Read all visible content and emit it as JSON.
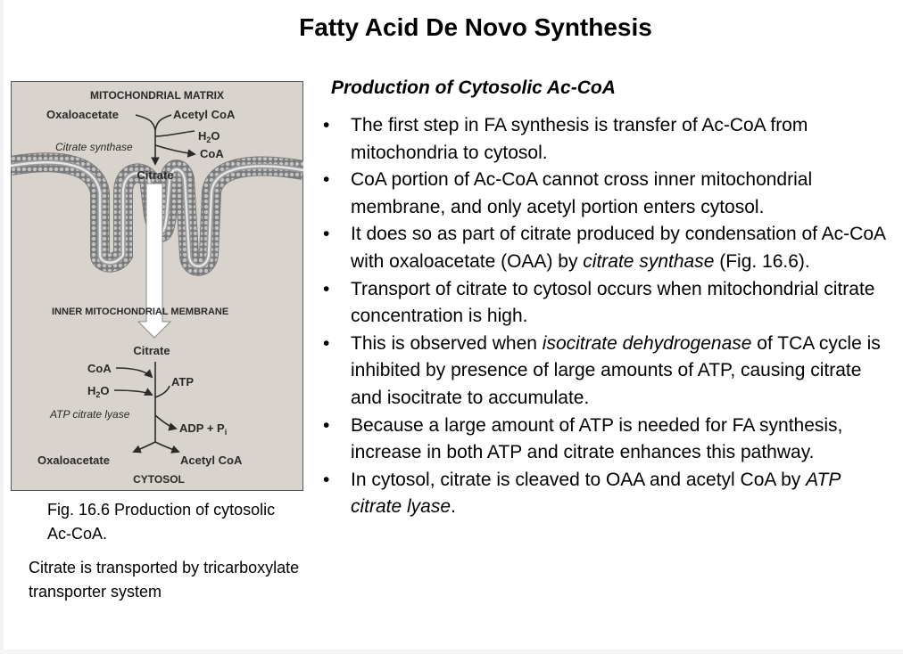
{
  "title": "Fatty Acid De Novo Synthesis",
  "subtitle": "Production of Cytosolic Ac-CoA",
  "bullets": [
    {
      "parts": [
        {
          "text": "The first step in FA synthesis is transfer of Ac-CoA from mitochondria to cytosol."
        }
      ]
    },
    {
      "parts": [
        {
          "text": "CoA portion of Ac-CoA cannot cross inner mitochondrial membrane, and only acetyl portion enters cytosol."
        }
      ]
    },
    {
      "parts": [
        {
          "text": "It does so as part of citrate produced by condensation of Ac-CoA with oxaloacetate (OAA) by "
        },
        {
          "text": "citrate synthase",
          "italic": true
        },
        {
          "text": " (Fig. 16.6)."
        }
      ]
    },
    {
      "parts": [
        {
          "text": "Transport of citrate to cytosol occurs when mitochondrial citrate concentration is high."
        }
      ]
    },
    {
      "parts": [
        {
          "text": "This is observed when "
        },
        {
          "text": "isocitrate dehydrogenase",
          "italic": true
        },
        {
          "text": " of TCA cycle is inhibited by presence of large amounts of ATP, causing citrate and isocitrate to accumulate."
        }
      ]
    },
    {
      "parts": [
        {
          "text": "Because a large amount of ATP is needed for FA synthesis, increase in both ATP and citrate enhances this pathway."
        }
      ]
    },
    {
      "parts": [
        {
          "text": "In cytosol, citrate is cleaved to OAA and acetyl CoA by "
        },
        {
          "text": "ATP citrate lyase",
          "italic": true
        },
        {
          "text": "."
        }
      ]
    }
  ],
  "figure": {
    "matrix_label": "MITOCHONDRIAL MATRIX",
    "oxaloacetate_top": "Oxaloacetate",
    "acetyl_coa_top": "Acetyl CoA",
    "h2o_top": "H",
    "h2o_top_sub": "2",
    "h2o_top_o": "O",
    "citrate_synthase": "Citrate synthase",
    "coa_top": "CoA",
    "citrate_top": "Citrate",
    "membrane_label": "INNER MITOCHONDRIAL MEMBRANE",
    "citrate_bottom": "Citrate",
    "coa_in": "CoA",
    "h2o_in": "H",
    "h2o_in_sub": "2",
    "h2o_in_o": "O",
    "atp": "ATP",
    "atp_citrate_lyase": "ATP citrate lyase",
    "adp_pi": "ADP + P",
    "adp_pi_sub": "i",
    "oxaloacetate_bottom": "Oxaloacetate",
    "acetyl_coa_bottom": "Acetyl CoA",
    "cytosol_label": "CYTOSOL",
    "colors": {
      "background": "#d8d3cc",
      "head": "#c2c2c2",
      "text": "#2a2a2a"
    }
  },
  "figure_caption": "Fig. 16.6 Production of cytosolic Ac-CoA.",
  "note": "Citrate is transported by tricarboxylate transporter system"
}
